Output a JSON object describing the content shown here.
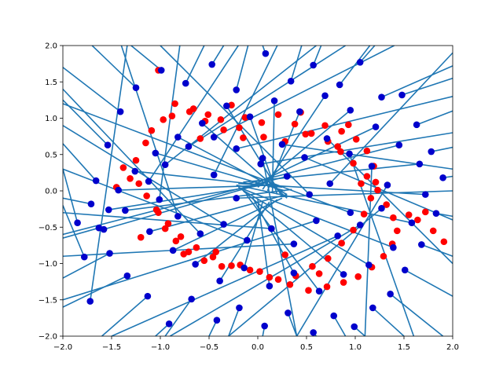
{
  "chart_data": {
    "type": "scatter",
    "title": "",
    "xlabel": "",
    "ylabel": "",
    "xlim": [
      -2,
      2
    ],
    "ylim": [
      -2,
      2
    ],
    "x_ticks": [
      "−2.0",
      "−1.5",
      "−1.0",
      "−0.5",
      "0.0",
      "0.5",
      "1.0",
      "1.5",
      "2.0"
    ],
    "y_ticks": [
      "−2.0",
      "−1.5",
      "−1.0",
      "−0.5",
      "0.0",
      "0.5",
      "1.0",
      "1.5",
      "2.0"
    ],
    "grid": false,
    "legend": "none",
    "colors": {
      "red_points": "#ff0000",
      "blue_points": "#0000cc",
      "lines": "#1f77b4"
    },
    "series": [
      {
        "kind": "points",
        "color_key": "red_points",
        "x": [
          -1.31,
          -1.25,
          -1.15,
          -1.09,
          -0.97,
          -0.88,
          -0.66,
          -0.51,
          -0.38,
          -0.19,
          0.04,
          0.21,
          0.38,
          0.55,
          0.72,
          0.85,
          0.98,
          1.12,
          1.23,
          1.32,
          1.39,
          1.43,
          1.38,
          1.29,
          1.17,
          1.03,
          0.88,
          0.71,
          0.52,
          0.33,
          0.12,
          -0.08,
          -0.27,
          -0.46,
          -0.63,
          -0.79,
          -0.92,
          -1.04,
          -1.14,
          -1.22,
          -1.02,
          -0.95,
          -0.84,
          -0.71,
          -0.55,
          -0.37,
          -0.18,
          0.02,
          0.21,
          0.39,
          0.56,
          0.72,
          0.86,
          0.98,
          1.09,
          1.16,
          1.21,
          1.19,
          1.12,
          1.01,
          0.86,
          0.69,
          0.49,
          0.28,
          0.06,
          -0.15,
          -0.35,
          -0.54,
          -0.7,
          -0.85,
          -1.38,
          -1.45,
          -1.2,
          -0.76,
          -0.59,
          0.63,
          0.82,
          1.55,
          1.64,
          1.72,
          1.8,
          1.91,
          -1.02,
          0.44,
          0.28,
          -0.43,
          -0.27,
          -0.13,
          0.93,
          1.06
        ],
        "y": [
          0.17,
          0.42,
          0.66,
          0.83,
          0.98,
          1.03,
          1.13,
          1.05,
          0.98,
          0.87,
          0.94,
          1.05,
          0.92,
          0.79,
          0.68,
          0.54,
          0.38,
          0.2,
          0.01,
          -0.19,
          -0.37,
          -0.55,
          -0.73,
          -0.9,
          -1.05,
          -1.18,
          -1.26,
          -1.32,
          -1.37,
          -1.29,
          -1.19,
          -1.09,
          -1.03,
          -0.91,
          -0.78,
          -0.63,
          -0.45,
          -0.26,
          -0.07,
          0.1,
          -0.3,
          -0.52,
          -0.69,
          -0.84,
          -0.96,
          -1.04,
          -1.02,
          -1.11,
          -1.22,
          -1.17,
          -1.04,
          -0.93,
          -0.72,
          -0.54,
          -0.32,
          -0.1,
          0.12,
          0.34,
          0.55,
          0.71,
          0.82,
          0.9,
          0.78,
          0.68,
          0.74,
          0.73,
          0.84,
          0.96,
          1.09,
          1.2,
          0.32,
          0.05,
          -0.64,
          -0.87,
          0.72,
          -1.14,
          0.61,
          -0.33,
          -0.4,
          -0.29,
          -0.55,
          -0.7,
          1.66,
          1.08,
          -0.88,
          -0.84,
          1.18,
          1.01,
          0.91,
          0.1
        ]
      },
      {
        "kind": "points",
        "color_key": "blue_points",
        "x": [
          -1.72,
          -1.78,
          -1.85,
          -1.66,
          -1.54,
          -1.41,
          -1.25,
          -0.99,
          -0.74,
          -0.47,
          -0.22,
          0.08,
          0.34,
          0.57,
          0.84,
          1.05,
          1.27,
          1.48,
          1.63,
          1.78,
          1.9,
          1.83,
          1.68,
          1.51,
          1.36,
          1.18,
          0.99,
          0.78,
          0.57,
          0.31,
          0.07,
          -0.19,
          -0.42,
          -0.68,
          -0.91,
          -1.13,
          -1.34,
          -1.52,
          -1.63,
          -1.71,
          -1.36,
          -1.11,
          -0.87,
          -0.64,
          -0.39,
          -0.14,
          0.12,
          0.37,
          0.63,
          0.88,
          1.14,
          1.39,
          1.58,
          1.72,
          1.66,
          1.45,
          1.21,
          0.95,
          0.69,
          0.43,
          0.17,
          -0.08,
          -0.32,
          -0.57,
          -0.82,
          -1.05,
          -1.26,
          -1.43,
          -1.53,
          -1.58,
          -0.95,
          -0.71,
          -0.45,
          -0.22,
          0.03,
          0.25,
          0.48,
          0.71,
          0.94,
          1.17,
          1.33,
          1.27,
          1.05,
          0.82,
          0.6,
          0.37,
          0.14,
          -0.11,
          -0.35,
          -0.59,
          -0.82,
          -1.01,
          -1.12,
          -0.45,
          -0.22,
          0.05,
          0.3,
          0.53,
          0.74,
          0.95
        ],
        "y": [
          -1.52,
          -0.91,
          -0.44,
          0.14,
          0.63,
          1.09,
          1.42,
          1.66,
          1.48,
          1.74,
          1.39,
          1.89,
          1.51,
          1.73,
          1.46,
          1.77,
          1.29,
          1.32,
          0.91,
          0.54,
          0.18,
          -0.31,
          -0.74,
          -1.09,
          -1.42,
          -1.61,
          -1.87,
          -1.72,
          -1.95,
          -1.68,
          -1.86,
          -1.61,
          -1.78,
          -1.49,
          -1.83,
          -1.45,
          -1.17,
          -0.86,
          -0.51,
          -0.18,
          -0.27,
          -0.56,
          -0.82,
          -1.01,
          -1.24,
          -1.06,
          -1.31,
          -1.13,
          -1.38,
          -1.15,
          -1.02,
          -0.78,
          -0.44,
          -0.05,
          0.37,
          0.63,
          0.88,
          1.11,
          1.31,
          1.09,
          1.24,
          1.02,
          1.17,
          0.93,
          0.74,
          0.52,
          0.27,
          0.01,
          -0.26,
          -0.53,
          0.36,
          0.61,
          0.74,
          0.58,
          0.37,
          0.64,
          0.46,
          0.72,
          0.51,
          0.34,
          0.08,
          -0.24,
          -0.47,
          -0.62,
          -0.41,
          -0.73,
          -0.52,
          -0.68,
          -0.46,
          -0.59,
          -0.35,
          -0.12,
          0.13,
          0.22,
          -0.1,
          0.45,
          0.2,
          -0.05,
          0.1,
          -0.3
        ]
      }
    ],
    "segments": [
      [
        -1.72,
        -1.52,
        -1.34,
        2.0
      ],
      [
        -1.78,
        -0.91,
        -2.0,
        -0.2
      ],
      [
        -1.85,
        -0.44,
        -2.0,
        0.3
      ],
      [
        -1.66,
        0.14,
        -2.0,
        0.65
      ],
      [
        -1.54,
        0.63,
        -2.0,
        1.25
      ],
      [
        -1.41,
        1.09,
        -2.0,
        1.7
      ],
      [
        -1.25,
        1.42,
        -1.7,
        2.0
      ],
      [
        -0.99,
        1.66,
        -1.3,
        2.0
      ],
      [
        -0.74,
        1.48,
        -0.55,
        2.0
      ],
      [
        -0.47,
        1.74,
        -0.35,
        2.0
      ],
      [
        -0.22,
        1.39,
        -0.1,
        2.0
      ],
      [
        0.08,
        1.89,
        0.05,
        2.0
      ],
      [
        0.34,
        1.51,
        0.45,
        2.0
      ],
      [
        0.57,
        1.73,
        0.65,
        2.0
      ],
      [
        0.84,
        1.46,
        1.15,
        2.0
      ],
      [
        1.05,
        1.77,
        1.2,
        2.0
      ],
      [
        1.27,
        1.29,
        2.0,
        1.72
      ],
      [
        1.48,
        1.32,
        2.0,
        1.55
      ],
      [
        1.63,
        0.91,
        2.0,
        1.1
      ],
      [
        1.78,
        0.54,
        2.0,
        0.6
      ],
      [
        1.9,
        0.18,
        2.0,
        0.2
      ],
      [
        1.83,
        -0.31,
        2.0,
        -0.35
      ],
      [
        1.68,
        -0.74,
        2.0,
        -0.9
      ],
      [
        1.51,
        -1.09,
        2.0,
        -1.45
      ],
      [
        1.36,
        -1.42,
        1.9,
        -2.0
      ],
      [
        1.18,
        -1.61,
        1.5,
        -2.0
      ],
      [
        0.99,
        -1.87,
        1.1,
        -2.0
      ],
      [
        0.78,
        -1.72,
        0.9,
        -2.0
      ],
      [
        0.57,
        -1.95,
        0.6,
        -2.0
      ],
      [
        0.31,
        -1.68,
        0.4,
        -2.0
      ],
      [
        0.07,
        -1.86,
        0.05,
        -2.0
      ],
      [
        -0.19,
        -1.61,
        -0.3,
        -2.0
      ],
      [
        -0.42,
        -1.78,
        -0.5,
        -2.0
      ],
      [
        -0.68,
        -1.49,
        -0.95,
        -2.0
      ],
      [
        -0.91,
        -1.83,
        -1.05,
        -2.0
      ],
      [
        -1.13,
        -1.45,
        -1.6,
        -2.0
      ],
      [
        -1.34,
        -1.17,
        -2.0,
        -1.6
      ],
      [
        -1.52,
        -0.86,
        -2.0,
        -1.2
      ],
      [
        -1.63,
        -0.51,
        -2.0,
        -0.65
      ],
      [
        -1.71,
        -0.18,
        -2.0,
        -0.1
      ],
      [
        -1.36,
        -0.27,
        0.35,
        0.02
      ],
      [
        -1.11,
        -0.56,
        0.3,
        -0.05
      ],
      [
        -0.87,
        -0.82,
        0.25,
        -0.1
      ],
      [
        -0.64,
        -1.01,
        0.2,
        -0.12
      ],
      [
        -0.39,
        -1.24,
        0.12,
        -0.15
      ],
      [
        -0.14,
        -1.06,
        0.05,
        -0.15
      ],
      [
        0.12,
        -1.31,
        0.0,
        -0.12
      ],
      [
        0.37,
        -1.13,
        -0.05,
        -0.1
      ],
      [
        0.63,
        -1.38,
        -0.12,
        -0.05
      ],
      [
        0.88,
        -1.15,
        -0.15,
        0.0
      ],
      [
        1.14,
        -1.02,
        -0.18,
        0.03
      ],
      [
        1.39,
        -0.78,
        -0.2,
        0.05
      ],
      [
        1.58,
        -0.44,
        -0.22,
        0.08
      ],
      [
        1.72,
        -0.05,
        -0.2,
        0.1
      ],
      [
        1.66,
        0.37,
        -0.15,
        0.12
      ],
      [
        1.45,
        0.63,
        -0.1,
        0.1
      ],
      [
        1.21,
        0.88,
        -0.05,
        0.08
      ],
      [
        0.95,
        1.11,
        0.0,
        0.05
      ],
      [
        0.69,
        1.31,
        0.05,
        0.02
      ],
      [
        0.43,
        1.09,
        0.1,
        0.0
      ],
      [
        0.17,
        1.24,
        0.15,
        -0.02
      ],
      [
        -0.08,
        1.02,
        0.2,
        -0.05
      ],
      [
        -0.32,
        1.17,
        0.25,
        -0.08
      ],
      [
        -0.57,
        0.93,
        0.3,
        -0.1
      ],
      [
        -0.82,
        0.74,
        0.3,
        -0.05
      ],
      [
        -1.05,
        0.52,
        0.28,
        0.0
      ],
      [
        -1.26,
        0.27,
        0.25,
        0.05
      ],
      [
        -1.43,
        0.01,
        0.2,
        0.08
      ],
      [
        -1.53,
        -0.26,
        0.15,
        0.1
      ],
      [
        -1.58,
        -0.53,
        0.1,
        0.12
      ],
      [
        -0.95,
        0.36,
        0.6,
        2.0
      ],
      [
        -0.71,
        0.61,
        0.9,
        2.0
      ],
      [
        -0.45,
        0.74,
        1.4,
        2.0
      ],
      [
        -0.22,
        0.58,
        2.0,
        1.3
      ],
      [
        0.03,
        0.37,
        2.0,
        0.8
      ],
      [
        0.25,
        0.64,
        2.0,
        0.3
      ],
      [
        0.48,
        0.46,
        2.0,
        -0.4
      ],
      [
        0.71,
        0.72,
        2.0,
        -1.0
      ],
      [
        0.94,
        0.51,
        1.6,
        -2.0
      ],
      [
        1.17,
        0.34,
        1.1,
        -2.0
      ],
      [
        1.33,
        0.08,
        0.4,
        -2.0
      ],
      [
        1.27,
        -0.24,
        -0.3,
        -2.0
      ],
      [
        1.05,
        -0.47,
        -0.9,
        -2.0
      ],
      [
        0.82,
        -0.62,
        -1.5,
        -2.0
      ],
      [
        0.6,
        -0.41,
        -2.0,
        -1.5
      ],
      [
        0.37,
        -0.73,
        -2.0,
        -0.9
      ],
      [
        0.14,
        -0.52,
        -2.0,
        -0.3
      ],
      [
        -0.11,
        -0.68,
        -2.0,
        0.3
      ],
      [
        -0.35,
        -0.46,
        -2.0,
        0.9
      ],
      [
        -0.59,
        -0.59,
        -2.0,
        1.4
      ],
      [
        -0.82,
        -0.35,
        -1.4,
        2.0
      ],
      [
        -1.01,
        -0.12,
        -0.8,
        2.0
      ],
      [
        -1.12,
        0.13,
        -0.2,
        2.0
      ],
      [
        -0.45,
        0.22,
        0.2,
        2.0
      ],
      [
        -0.22,
        -0.1,
        2.0,
        0.0
      ],
      [
        0.05,
        0.45,
        0.4,
        -2.0
      ],
      [
        0.3,
        0.2,
        -2.0,
        -0.6
      ],
      [
        0.53,
        -0.05,
        -1.0,
        2.0
      ],
      [
        0.74,
        0.1,
        2.0,
        1.9
      ],
      [
        0.95,
        -0.3,
        -2.0,
        1.2
      ]
    ]
  }
}
